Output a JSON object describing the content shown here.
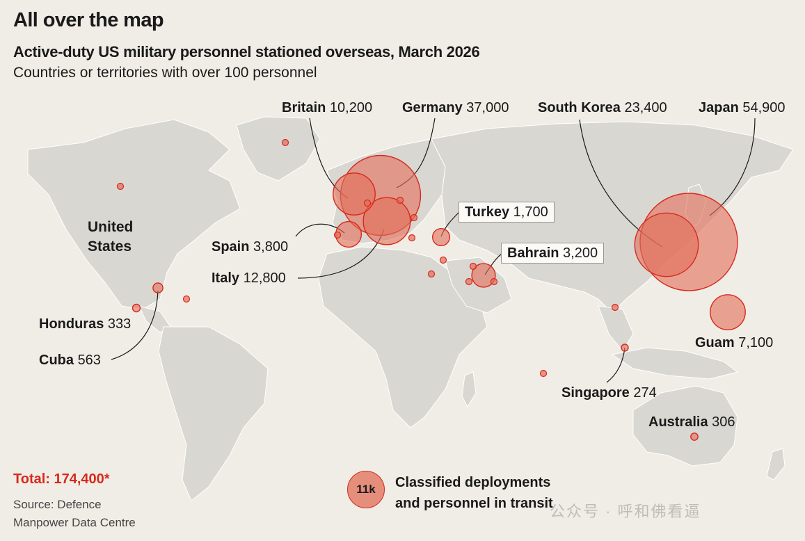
{
  "header": {
    "title": "All over the map",
    "subtitle": "Active-duty US military personnel stationed overseas, March 2026",
    "note": "Countries or territories with over 100 personnel"
  },
  "map_labels": {
    "usa": [
      "United",
      "States"
    ]
  },
  "countries": [
    {
      "key": "britain",
      "name": "Britain",
      "value": "10,200",
      "count": 10200
    },
    {
      "key": "germany",
      "name": "Germany",
      "value": "37,000",
      "count": 37000
    },
    {
      "key": "south_korea",
      "name": "South Korea",
      "value": "23,400",
      "count": 23400
    },
    {
      "key": "japan",
      "name": "Japan",
      "value": "54,900",
      "count": 54900
    },
    {
      "key": "turkey",
      "name": "Turkey",
      "value": "1,700",
      "count": 1700
    },
    {
      "key": "spain",
      "name": "Spain",
      "value": "3,800",
      "count": 3800
    },
    {
      "key": "bahrain",
      "name": "Bahrain",
      "value": "3,200",
      "count": 3200
    },
    {
      "key": "italy",
      "name": "Italy",
      "value": "12,800",
      "count": 12800
    },
    {
      "key": "honduras",
      "name": "Honduras",
      "value": "333",
      "count": 333
    },
    {
      "key": "cuba",
      "name": "Cuba",
      "value": "563",
      "count": 563
    },
    {
      "key": "guam",
      "name": "Guam",
      "value": "7,100",
      "count": 7100
    },
    {
      "key": "singapore",
      "name": "Singapore",
      "value": "274",
      "count": 274
    },
    {
      "key": "australia",
      "name": "Australia",
      "value": "306",
      "count": 306
    }
  ],
  "footer": {
    "total": "Total: 174,400*",
    "source_line1": "Source: Defence",
    "source_line2": "Manpower Data Centre"
  },
  "legend": {
    "circle_label": "11k",
    "line1": "Classified deployments",
    "line2": "and personnel in transit"
  },
  "watermark": "公众号 · 呼和佛看逼",
  "colors": {
    "background": "#f0ede6",
    "land": "#d9d7d2",
    "bubble_fill": "#e26e58",
    "bubble_stroke": "#d7291d",
    "total_text": "#d7291d"
  }
}
